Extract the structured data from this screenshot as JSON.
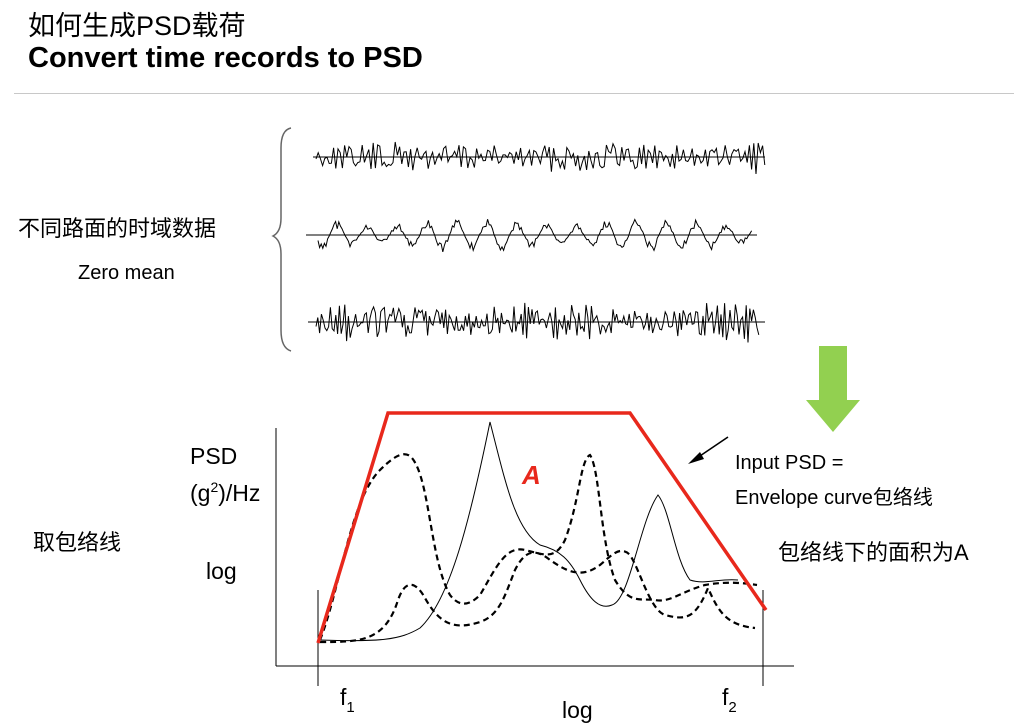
{
  "header": {
    "title_cn": "如何生成PSD载荷",
    "title_en": "Convert time records to PSD"
  },
  "time_records": {
    "label_cn": "不同路面的时域数据",
    "label_en": "Zero mean"
  },
  "psd_plot": {
    "ylabel_line1": "PSD",
    "ylabel_line2_pre": "(g",
    "ylabel_line2_sup": "2",
    "ylabel_line2_post": ")/Hz",
    "ylabel_scale": "log",
    "xlabel_scale": "log",
    "f1_main": "f",
    "f1_sub": "1",
    "f2_main": "f",
    "f2_sub": "2",
    "area_label": "A",
    "envelope_label_cn": "取包络线",
    "input_psd_line1": "Input PSD =",
    "input_psd_line2": "Envelope curve包络线",
    "area_note": "包络线下的面积为A"
  },
  "colors": {
    "envelope": "#e8281c",
    "arrow": "#92d050",
    "trace": "#000000"
  }
}
